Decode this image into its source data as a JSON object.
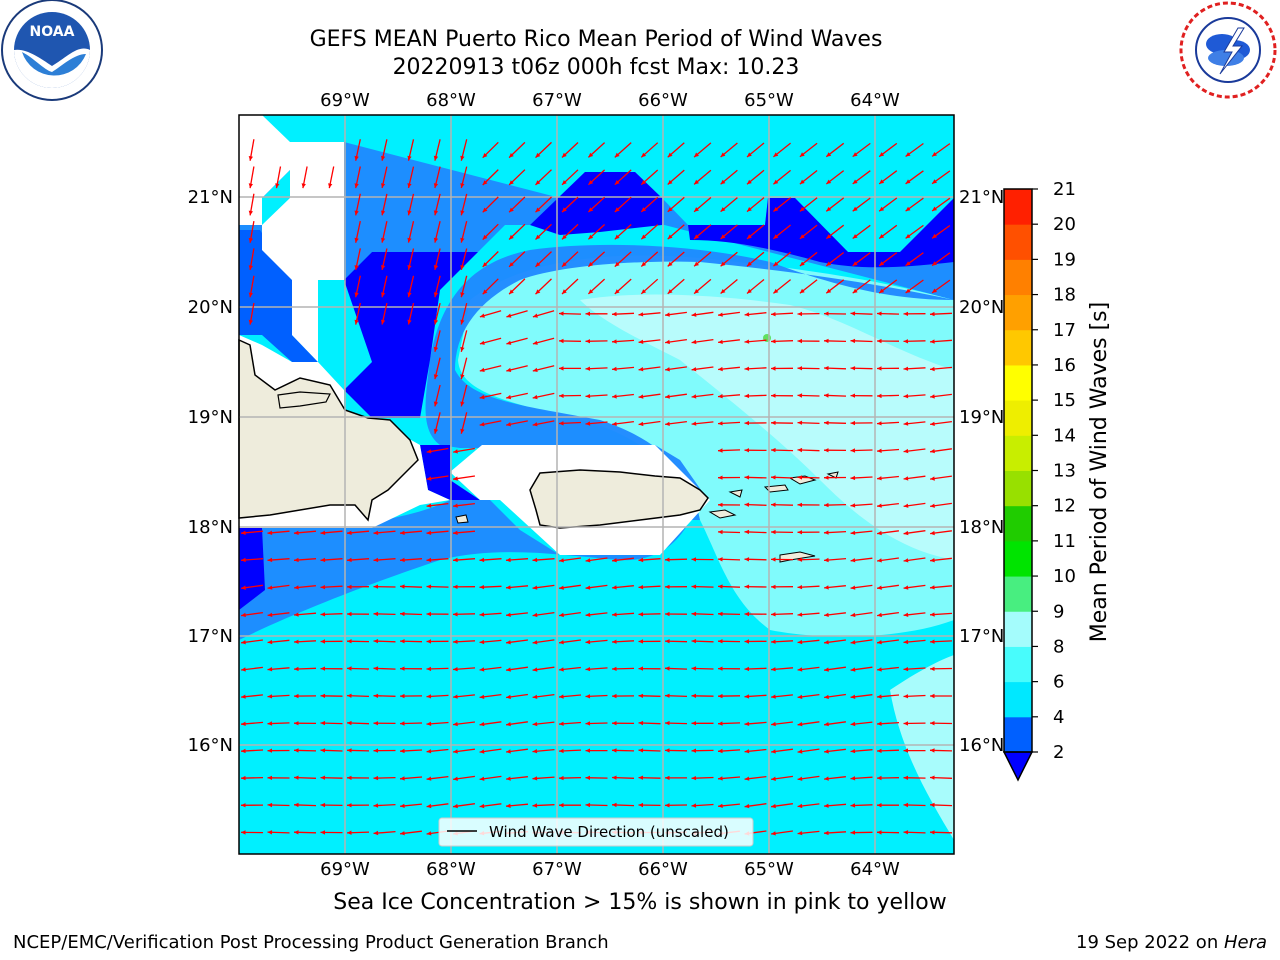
{
  "title": {
    "line1": "GEFS MEAN Puerto Rico Mean Period of Wind Waves",
    "line2": "20220913 t06z 000h fcst   Max: 10.23"
  },
  "subtitle": "Sea Ice Concentration > 15% is shown in pink to yellow",
  "footer": {
    "left": "NCEP/EMC/Verification Post Processing Product Generation Branch",
    "right_date": "19 Sep 2022 on ",
    "right_host": "Hera"
  },
  "logos": {
    "noaa": {
      "text": "NOAA",
      "ring_top": "NATIONAL OCEANIC AND ATMOSPHERIC ADMINISTRATION",
      "ring_bottom": "U.S. DEPARTMENT OF COMMERCE"
    },
    "nws": {
      "ring": "NATIONAL WEATHER SERVICE"
    }
  },
  "map": {
    "lon_labels": [
      "69°W",
      "68°W",
      "67°W",
      "66°W",
      "65°W",
      "64°W"
    ],
    "lat_labels": [
      "21°N",
      "20°N",
      "19°N",
      "18°N",
      "17°N",
      "16°N"
    ],
    "legend_label": "Wind Wave Direction (unscaled)",
    "arrow_color": "#ff0000"
  },
  "colorbar": {
    "label": "Mean Period of Wind Waves [s]",
    "ticks": [
      "2",
      "4",
      "6",
      "8",
      "9",
      "10",
      "11",
      "12",
      "13",
      "14",
      "15",
      "16",
      "17",
      "18",
      "19",
      "20",
      "21"
    ],
    "colors": [
      "#0060ff",
      "#00e8ff",
      "#48fcfc",
      "#a4fcfc",
      "#48ee80",
      "#00e400",
      "#20cc00",
      "#98e000",
      "#c8ee00",
      "#eeee00",
      "#ffff00",
      "#ffc800",
      "#ffa000",
      "#ff8000",
      "#ff5000",
      "#ff2000"
    ],
    "under_color": "#0000ff"
  }
}
